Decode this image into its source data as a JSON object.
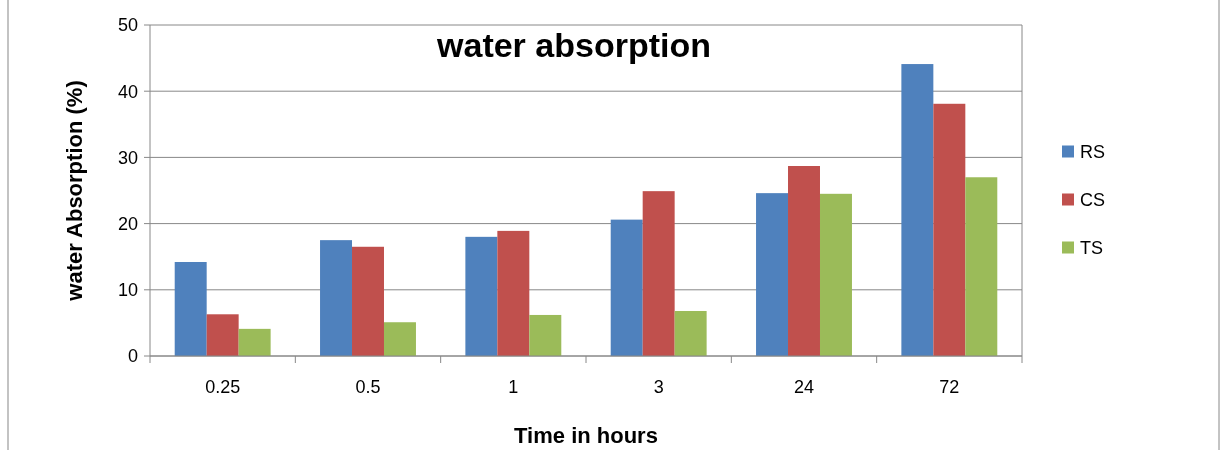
{
  "chart_data": {
    "type": "bar",
    "title": "water absorption",
    "xlabel": "Time in hours",
    "ylabel": "water Absorption (%)",
    "categories": [
      "0.25",
      "0.5",
      "1",
      "3",
      "24",
      "72"
    ],
    "series": [
      {
        "name": "RS",
        "color": "#4f81bd",
        "values": [
          14.2,
          17.5,
          18,
          20.6,
          24.6,
          44.1
        ]
      },
      {
        "name": "CS",
        "color": "#c0504d",
        "values": [
          6.3,
          16.5,
          18.9,
          24.9,
          28.7,
          38.1
        ]
      },
      {
        "name": "TS",
        "color": "#9bbb59",
        "values": [
          4.1,
          5.1,
          6.2,
          6.8,
          24.5,
          27
        ]
      }
    ],
    "ylim": [
      0,
      50
    ],
    "yticks": [
      0,
      10,
      20,
      30,
      40,
      50
    ],
    "grid": "y",
    "legend": "right"
  }
}
